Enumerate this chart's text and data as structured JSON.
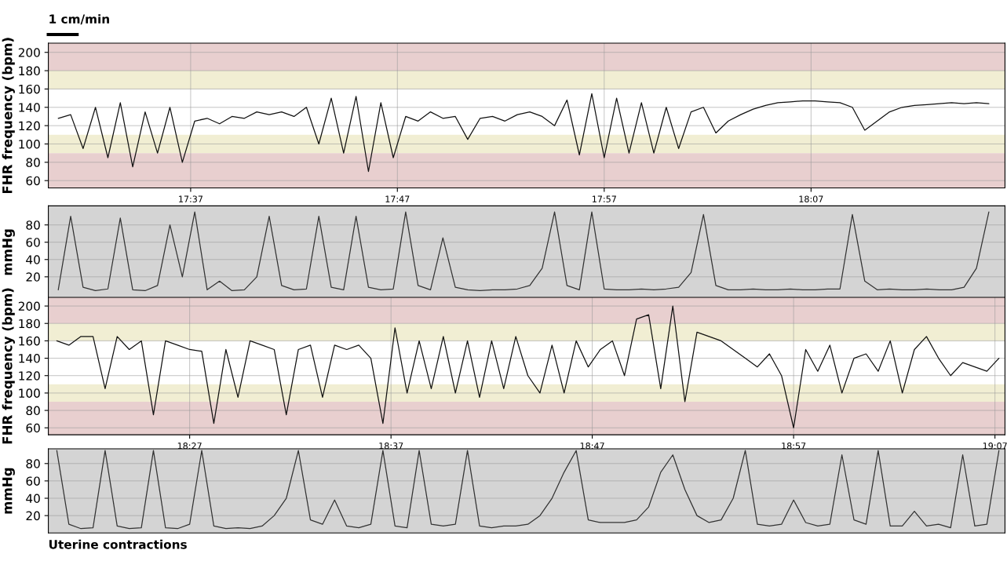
{
  "chart_data": [
    {
      "type": "line",
      "ylabel": "FHR frequency (bpm)",
      "annotations": [
        "1 cm/min"
      ],
      "grid": true,
      "xlim": [
        17.502,
        18.273
      ],
      "ylim": [
        52,
        210
      ],
      "yticks": [
        60,
        80,
        100,
        120,
        140,
        160,
        180,
        200
      ],
      "xticks": [
        {
          "value": 17.6167,
          "label": "17:37"
        },
        {
          "value": 17.7833,
          "label": "17:47"
        },
        {
          "value": 17.95,
          "label": "17:57"
        },
        {
          "value": 18.1167,
          "label": "18:07"
        }
      ],
      "bands": [
        {
          "axis": "y",
          "from": 180,
          "to": 210,
          "color": "#e8cfcf"
        },
        {
          "axis": "y",
          "from": 160,
          "to": 180,
          "color": "#f1eed3"
        },
        {
          "axis": "y",
          "from": 90,
          "to": 110,
          "color": "#f1eed3"
        },
        {
          "axis": "y",
          "from": 52,
          "to": 90,
          "color": "#e8cfcf"
        }
      ],
      "color": "#111111",
      "x": [
        17.51,
        17.52,
        17.53,
        17.54,
        17.55,
        17.56,
        17.57,
        17.58,
        17.59,
        17.6,
        17.61,
        17.62,
        17.63,
        17.64,
        17.65,
        17.66,
        17.67,
        17.68,
        17.69,
        17.7,
        17.71,
        17.72,
        17.73,
        17.74,
        17.75,
        17.76,
        17.77,
        17.78,
        17.79,
        17.8,
        17.81,
        17.82,
        17.83,
        17.84,
        17.85,
        17.86,
        17.87,
        17.88,
        17.89,
        17.9,
        17.91,
        17.92,
        17.93,
        17.94,
        17.95,
        17.96,
        17.97,
        17.98,
        17.99,
        18.0,
        18.01,
        18.02,
        18.03,
        18.04,
        18.05,
        18.06,
        18.07,
        18.08,
        18.09,
        18.1,
        18.11,
        18.12,
        18.13,
        18.14,
        18.15,
        18.16,
        18.17,
        18.18,
        18.19,
        18.2,
        18.21,
        18.22,
        18.23,
        18.24,
        18.25,
        18.26
      ],
      "values": [
        128,
        132,
        95,
        140,
        85,
        145,
        75,
        135,
        90,
        140,
        80,
        125,
        128,
        122,
        130,
        128,
        135,
        132,
        135,
        130,
        140,
        100,
        150,
        90,
        152,
        70,
        145,
        85,
        130,
        125,
        135,
        128,
        130,
        105,
        128,
        130,
        125,
        132,
        135,
        130,
        120,
        148,
        88,
        155,
        85,
        150,
        90,
        145,
        90,
        140,
        95,
        135,
        140,
        112,
        125,
        132,
        138,
        142,
        145,
        146,
        147,
        147,
        146,
        145,
        140,
        115,
        125,
        135,
        140,
        142,
        143,
        144,
        145,
        144,
        145,
        144
      ]
    },
    {
      "type": "line",
      "ylabel": "mmHg",
      "grid": true,
      "tick_labels": "y",
      "xlim": [
        17.502,
        18.273
      ],
      "ylim": [
        -5,
        102
      ],
      "yticks": [
        20,
        40,
        60,
        80
      ],
      "bands": [
        {
          "axis": "y",
          "from": -5,
          "to": 102,
          "color": "#d4d4d4"
        }
      ],
      "color": "#333333",
      "x": [
        17.51,
        17.52,
        17.53,
        17.54,
        17.55,
        17.56,
        17.57,
        17.58,
        17.59,
        17.6,
        17.61,
        17.62,
        17.63,
        17.64,
        17.65,
        17.66,
        17.67,
        17.68,
        17.69,
        17.7,
        17.71,
        17.72,
        17.73,
        17.74,
        17.75,
        17.76,
        17.77,
        17.78,
        17.79,
        17.8,
        17.81,
        17.82,
        17.83,
        17.84,
        17.85,
        17.86,
        17.87,
        17.88,
        17.89,
        17.9,
        17.91,
        17.92,
        17.93,
        17.94,
        17.95,
        17.96,
        17.97,
        17.98,
        17.99,
        18.0,
        18.01,
        18.02,
        18.03,
        18.04,
        18.05,
        18.06,
        18.07,
        18.08,
        18.09,
        18.1,
        18.11,
        18.12,
        18.13,
        18.14,
        18.15,
        18.16,
        18.17,
        18.18,
        18.19,
        18.2,
        18.21,
        18.22,
        18.23,
        18.24,
        18.25,
        18.26
      ],
      "values": [
        5,
        90,
        8,
        4,
        6,
        88,
        5,
        4,
        10,
        80,
        20,
        95,
        5,
        15,
        4,
        5,
        20,
        90,
        10,
        5,
        6,
        90,
        8,
        5,
        90,
        8,
        5,
        6,
        95,
        10,
        5,
        65,
        8,
        5,
        4,
        5,
        5,
        6,
        10,
        30,
        95,
        10,
        5,
        95,
        6,
        5,
        5,
        6,
        5,
        6,
        8,
        25,
        92,
        10,
        5,
        5,
        6,
        5,
        5,
        6,
        5,
        5,
        6,
        6,
        92,
        15,
        5,
        6,
        5,
        5,
        6,
        5,
        5,
        8,
        30,
        95
      ]
    },
    {
      "type": "line",
      "ylabel": "FHR frequency (bpm)",
      "grid": true,
      "xlim": [
        18.333,
        19.125
      ],
      "ylim": [
        52,
        210
      ],
      "yticks": [
        60,
        80,
        100,
        120,
        140,
        160,
        180,
        200
      ],
      "xticks": [
        {
          "value": 18.45,
          "label": "18:27"
        },
        {
          "value": 18.6167,
          "label": "18:37"
        },
        {
          "value": 18.7833,
          "label": "18:47"
        },
        {
          "value": 18.95,
          "label": "18:57"
        },
        {
          "value": 19.1167,
          "label": "19:07"
        }
      ],
      "bands": [
        {
          "axis": "y",
          "from": 180,
          "to": 210,
          "color": "#e8cfcf"
        },
        {
          "axis": "y",
          "from": 160,
          "to": 180,
          "color": "#f1eed3"
        },
        {
          "axis": "y",
          "from": 90,
          "to": 110,
          "color": "#f1eed3"
        },
        {
          "axis": "y",
          "from": 52,
          "to": 90,
          "color": "#e8cfcf"
        }
      ],
      "color": "#111111",
      "x": [
        18.34,
        18.35,
        18.36,
        18.37,
        18.38,
        18.39,
        18.4,
        18.41,
        18.42,
        18.43,
        18.44,
        18.45,
        18.46,
        18.47,
        18.48,
        18.49,
        18.5,
        18.51,
        18.52,
        18.53,
        18.54,
        18.55,
        18.56,
        18.57,
        18.58,
        18.59,
        18.6,
        18.61,
        18.62,
        18.63,
        18.64,
        18.65,
        18.66,
        18.67,
        18.68,
        18.69,
        18.7,
        18.71,
        18.72,
        18.73,
        18.74,
        18.75,
        18.76,
        18.77,
        18.78,
        18.79,
        18.8,
        18.81,
        18.82,
        18.83,
        18.84,
        18.85,
        18.86,
        18.87,
        18.88,
        18.89,
        18.9,
        18.91,
        18.92,
        18.93,
        18.94,
        18.95,
        18.96,
        18.97,
        18.98,
        18.99,
        19.0,
        19.01,
        19.02,
        19.03,
        19.04,
        19.05,
        19.06,
        19.07,
        19.08,
        19.09,
        19.1,
        19.11,
        19.12
      ],
      "values": [
        160,
        155,
        165,
        165,
        105,
        165,
        150,
        160,
        75,
        160,
        155,
        150,
        148,
        65,
        150,
        95,
        160,
        155,
        150,
        75,
        150,
        155,
        95,
        155,
        150,
        155,
        140,
        65,
        175,
        100,
        160,
        105,
        165,
        100,
        160,
        95,
        160,
        105,
        165,
        120,
        100,
        155,
        100,
        160,
        130,
        150,
        160,
        120,
        185,
        190,
        105,
        200,
        90,
        170,
        165,
        160,
        150,
        140,
        130,
        145,
        120,
        60,
        150,
        125,
        155,
        100,
        140,
        145,
        125,
        160,
        100,
        150,
        165,
        140,
        120,
        135,
        130,
        125,
        140
      ]
    },
    {
      "type": "line",
      "ylabel": "mmHg",
      "grid": true,
      "tick_labels": "y",
      "annotations": [
        "Uterine contractions"
      ],
      "xlim": [
        18.333,
        19.125
      ],
      "ylim": [
        0,
        97
      ],
      "yticks": [
        20,
        40,
        60,
        80
      ],
      "bands": [
        {
          "axis": "y",
          "from": 0,
          "to": 97,
          "color": "#d4d4d4"
        }
      ],
      "color": "#333333",
      "x": [
        18.34,
        18.35,
        18.36,
        18.37,
        18.38,
        18.39,
        18.4,
        18.41,
        18.42,
        18.43,
        18.44,
        18.45,
        18.46,
        18.47,
        18.48,
        18.49,
        18.5,
        18.51,
        18.52,
        18.53,
        18.54,
        18.55,
        18.56,
        18.57,
        18.58,
        18.59,
        18.6,
        18.61,
        18.62,
        18.63,
        18.64,
        18.65,
        18.66,
        18.67,
        18.68,
        18.69,
        18.7,
        18.71,
        18.72,
        18.73,
        18.74,
        18.75,
        18.76,
        18.77,
        18.78,
        18.79,
        18.8,
        18.81,
        18.82,
        18.83,
        18.84,
        18.85,
        18.86,
        18.87,
        18.88,
        18.89,
        18.9,
        18.91,
        18.92,
        18.93,
        18.94,
        18.95,
        18.96,
        18.97,
        18.98,
        18.99,
        19.0,
        19.01,
        19.02,
        19.03,
        19.04,
        19.05,
        19.06,
        19.07,
        19.08,
        19.09,
        19.1,
        19.11,
        19.12
      ],
      "values": [
        95,
        10,
        5,
        6,
        95,
        8,
        5,
        6,
        95,
        6,
        5,
        10,
        95,
        8,
        5,
        6,
        5,
        8,
        20,
        40,
        95,
        15,
        10,
        38,
        8,
        6,
        10,
        95,
        8,
        6,
        95,
        10,
        8,
        10,
        95,
        8,
        6,
        8,
        8,
        10,
        20,
        40,
        70,
        95,
        15,
        12,
        12,
        12,
        15,
        30,
        70,
        90,
        50,
        20,
        12,
        15,
        40,
        95,
        10,
        8,
        10,
        38,
        12,
        8,
        10,
        90,
        15,
        10,
        95,
        8,
        8,
        25,
        8,
        10,
        6,
        90,
        8,
        10,
        95
      ]
    }
  ]
}
